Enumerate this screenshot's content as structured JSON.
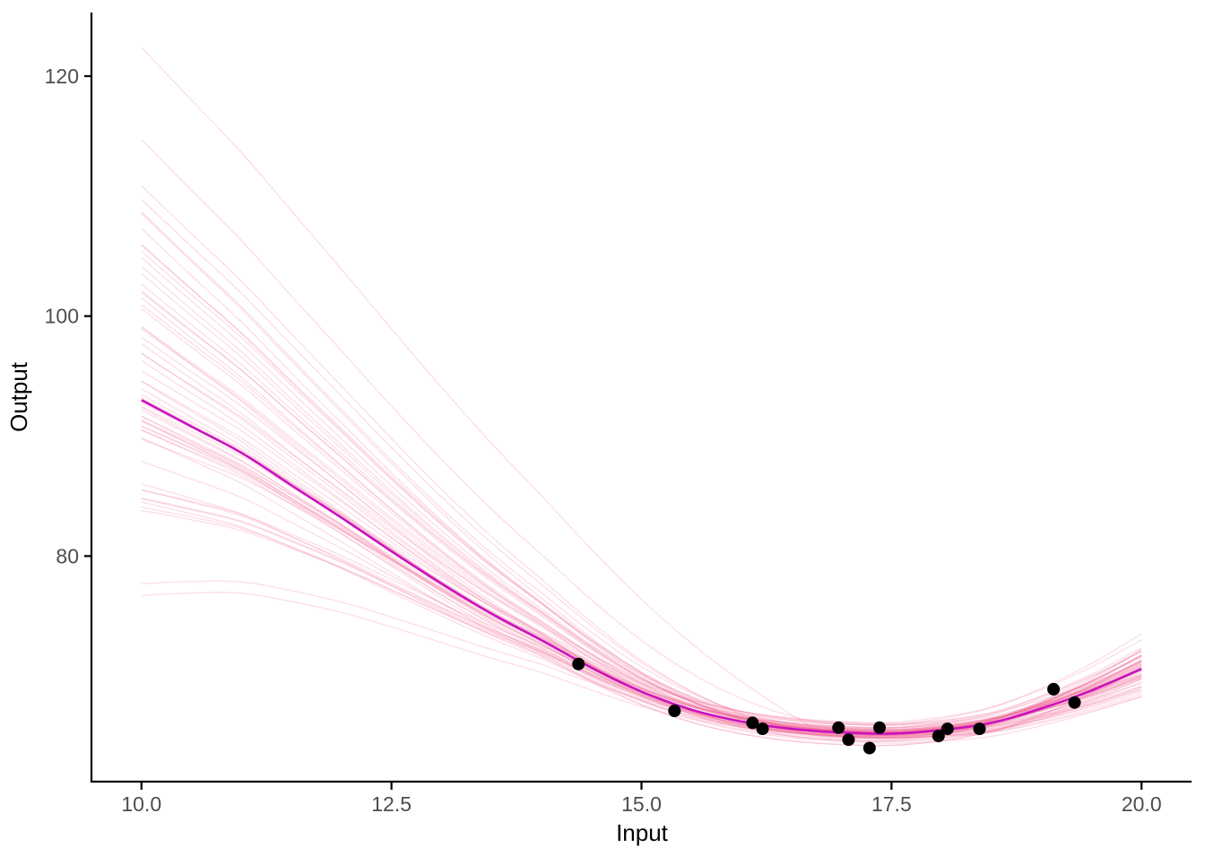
{
  "chart_data": {
    "type": "line",
    "title": "",
    "xlabel": "Input",
    "ylabel": "Output",
    "x_tick_values": [
      10.0,
      12.5,
      15.0,
      17.5,
      20.0
    ],
    "x_tick_labels": [
      "10.0",
      "12.5",
      "15.0",
      "17.5",
      "20.0"
    ],
    "y_tick_values": [
      80,
      100,
      120
    ],
    "y_tick_labels": [
      "80",
      "100",
      "120"
    ],
    "x_range": [
      9.5,
      20.5
    ],
    "y_range": [
      61.2,
      125.3
    ],
    "grid": "off",
    "legend": "none",
    "points": [
      [
        14.37,
        71.0
      ],
      [
        15.33,
        67.1
      ],
      [
        16.11,
        66.1
      ],
      [
        16.21,
        65.6
      ],
      [
        16.97,
        65.7
      ],
      [
        17.07,
        64.7
      ],
      [
        17.28,
        64.0
      ],
      [
        17.38,
        65.7
      ],
      [
        17.97,
        65.0
      ],
      [
        18.06,
        65.6
      ],
      [
        18.38,
        65.6
      ],
      [
        19.12,
        68.9
      ],
      [
        19.33,
        67.8
      ]
    ],
    "mean_curve": {
      "x": [
        10,
        10.5,
        11,
        11.5,
        12,
        12.5,
        13,
        13.5,
        14,
        14.5,
        15,
        15.5,
        16,
        16.5,
        17,
        17.5,
        18,
        18.5,
        19,
        19.5,
        20
      ],
      "y": [
        93.0,
        90.8,
        88.6,
        85.9,
        83.2,
        80.4,
        77.7,
        75.2,
        73.0,
        70.7,
        68.7,
        67.2,
        66.2,
        65.6,
        65.3,
        65.2,
        65.5,
        66.1,
        67.3,
        68.8,
        70.6
      ]
    },
    "ensemble": {
      "description": "translucent posterior-draw curves fanning from y 77-122.5 at x=10, pinched tight over the data, spreading y 68.5-72.8 at x=20",
      "count": 60,
      "seed": 42,
      "x_start": 10,
      "x_end": 20,
      "x_step": 0.2,
      "left_mean_offset": 2.0,
      "left_sd": 9.5,
      "left_min": -16,
      "left_max": 26,
      "outlier_offset": 29.5,
      "right_sd": 1.0,
      "right_min": -2.05,
      "right_max": 2.2,
      "mid_sd": 0.45,
      "pinch_left_x": 16.8,
      "pinch_left_span": 6.8,
      "pinch_right_x": 17.0,
      "pinch_right_span": 3.0
    },
    "colors": {
      "mean_curve": "#CB11BE",
      "ensemble_stroke": "#F06292",
      "ensemble_opacity": 0.22,
      "points": "#000000",
      "axis_line": "#000000",
      "axis_text": "#4d4d4d",
      "axis_title": "#000000",
      "background": "#ffffff"
    },
    "point_radius": 7,
    "mean_stroke_width": 2.6,
    "ensemble_stroke_width": 1.3
  }
}
